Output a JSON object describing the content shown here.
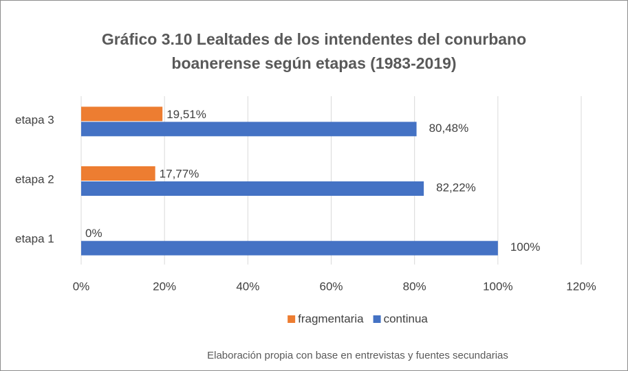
{
  "chart_data": {
    "type": "hbar",
    "title": "Gráfico 3.10 Lealtades de los intendentes del conurbano boanerense según etapas (1983-2019)",
    "categories": [
      "etapa 1",
      "etapa 2",
      "etapa 3"
    ],
    "series": [
      {
        "name": "fragmentaria",
        "color": "#ED7D31",
        "values": [
          0,
          17.77,
          19.51
        ],
        "value_labels": [
          "0%",
          "17,77%",
          "19,51%"
        ]
      },
      {
        "name": "continua",
        "color": "#4472C4",
        "values": [
          100,
          82.22,
          80.48
        ],
        "value_labels": [
          "100%",
          "82,22%",
          "80,48%"
        ]
      }
    ],
    "xlim": [
      0,
      120
    ],
    "xticks": [
      {
        "value": 0,
        "label": "0%"
      },
      {
        "value": 20,
        "label": "20%"
      },
      {
        "value": 40,
        "label": "40%"
      },
      {
        "value": 60,
        "label": "60%"
      },
      {
        "value": 80,
        "label": "80%"
      },
      {
        "value": 100,
        "label": "100%"
      },
      {
        "value": 120,
        "label": "120%"
      }
    ],
    "grid": true,
    "legend": "bottom",
    "note": "Elaboración propia con base en entrevistas y fuentes secundarias"
  }
}
